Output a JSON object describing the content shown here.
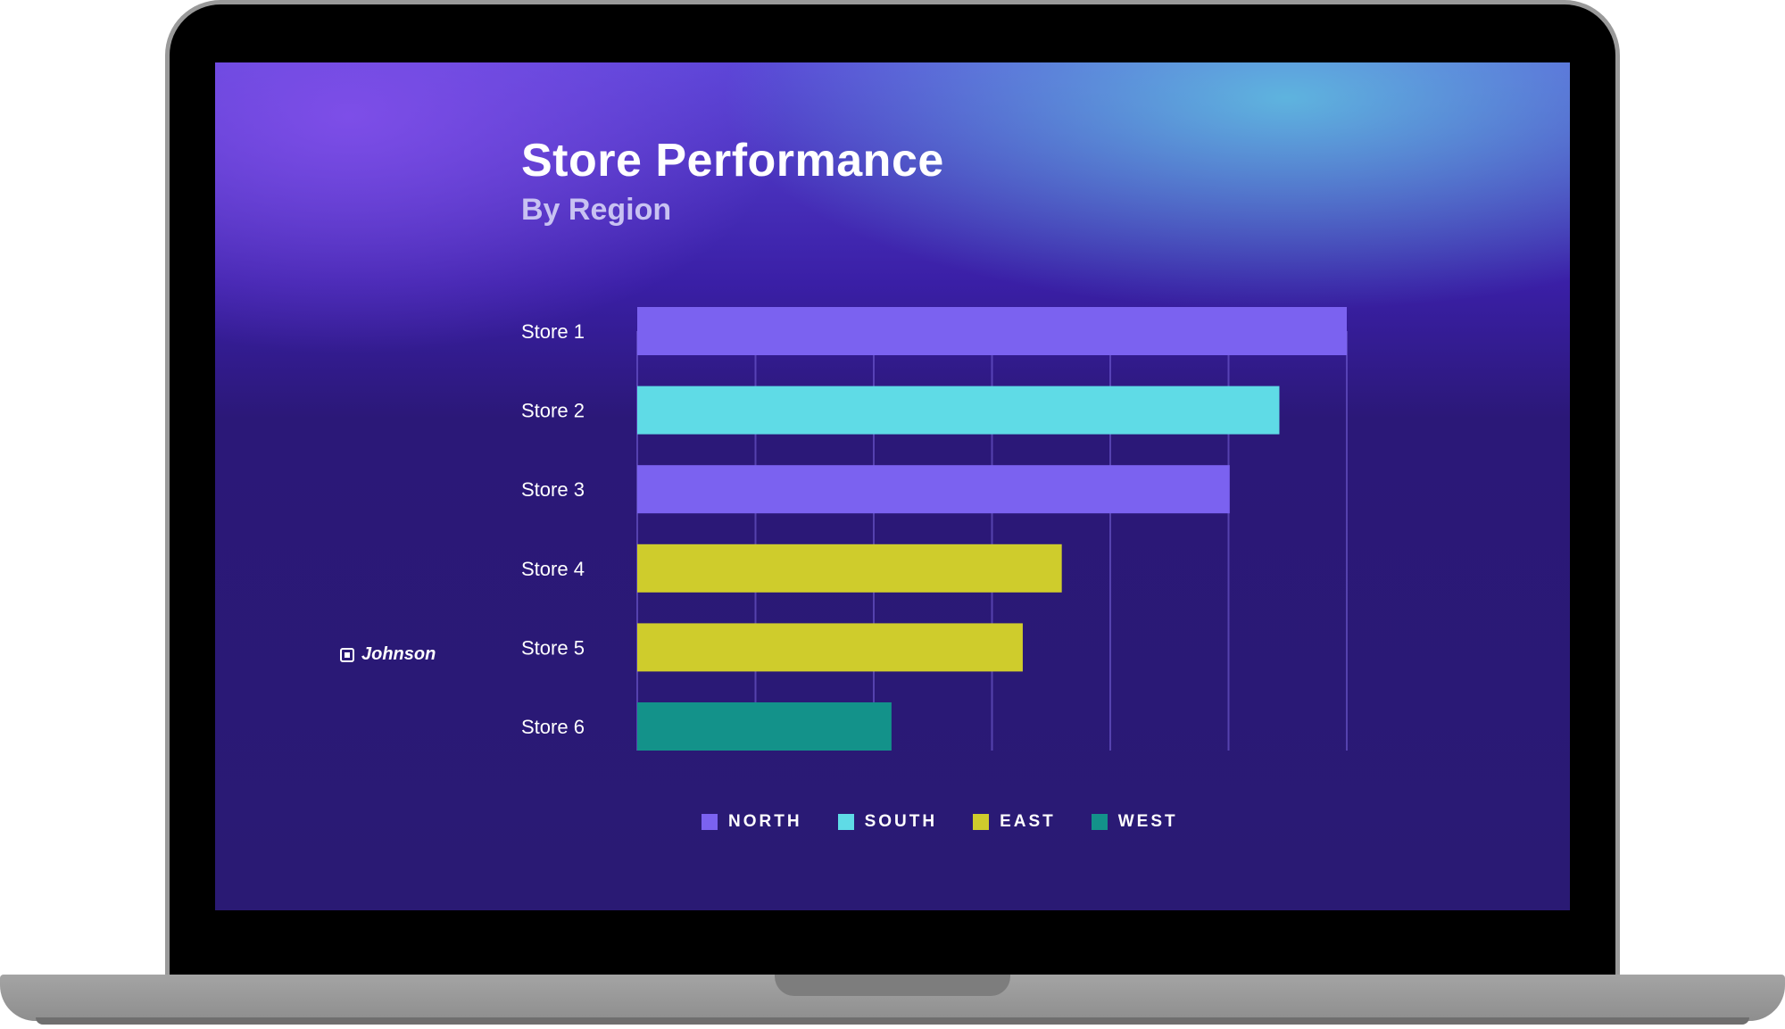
{
  "chart_data": {
    "type": "bar",
    "orientation": "horizontal",
    "title": "Store Performance",
    "subtitle": "By Region",
    "categories": [
      "Store 1",
      "Store 2",
      "Store 3",
      "Store 4",
      "Store 5",
      "Store 6"
    ],
    "values": [
      6,
      5.43,
      5.01,
      3.59,
      3.26,
      2.15
    ],
    "regions": [
      "North",
      "South",
      "North",
      "East",
      "East",
      "West"
    ],
    "xlim": [
      0,
      6
    ],
    "grid": true,
    "legend": {
      "placement": "bottom",
      "entries": [
        {
          "label": "NORTH",
          "color": "#7b62f0"
        },
        {
          "label": "SOUTH",
          "color": "#5fdbe6"
        },
        {
          "label": "EAST",
          "color": "#cfcc2c"
        },
        {
          "label": "WEST",
          "color": "#13928a"
        }
      ]
    },
    "region_colors": {
      "North": "#7b62f0",
      "South": "#5fdbe6",
      "East": "#cfcc2c",
      "West": "#13928a"
    }
  },
  "brand": {
    "text": "Johnson",
    "icon": "logo-square-icon"
  }
}
